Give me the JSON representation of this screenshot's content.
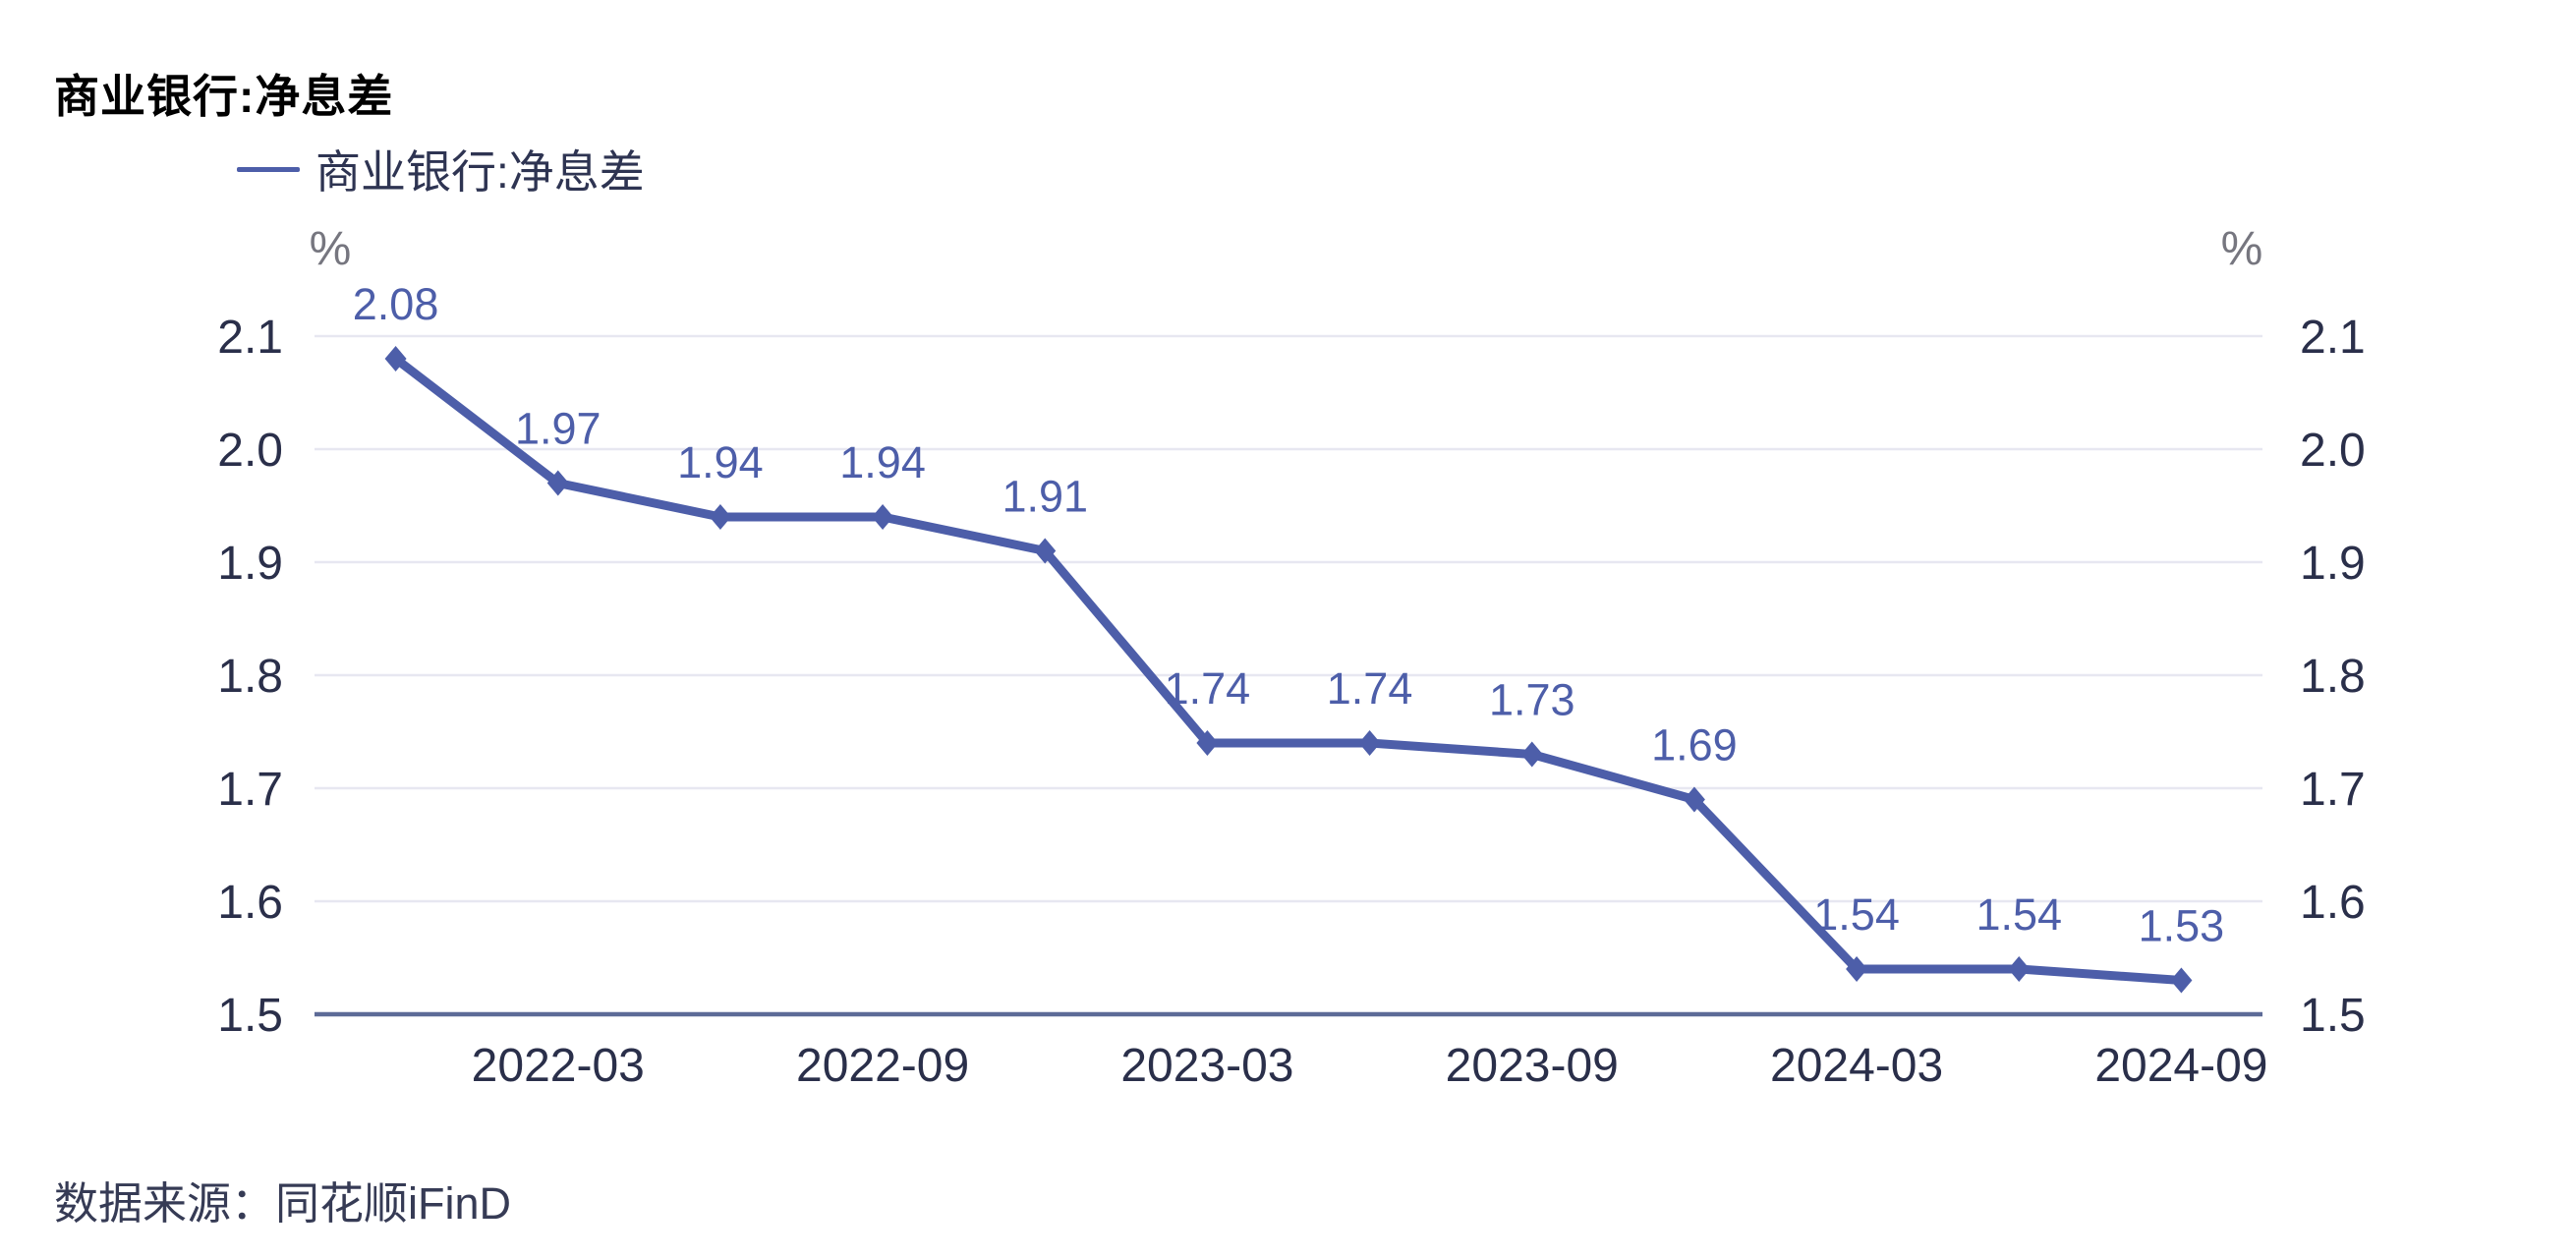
{
  "title": "商业银行:净息差",
  "legend": {
    "label": "商业银行:净息差"
  },
  "source": {
    "label": "数据来源：同花顺iFinD"
  },
  "chart_data": {
    "type": "line",
    "title": "商业银行:净息差",
    "unit": "%",
    "x": [
      "2021-12",
      "2022-03",
      "2022-06",
      "2022-09",
      "2022-12",
      "2023-03",
      "2023-06",
      "2023-09",
      "2023-12",
      "2024-03",
      "2024-06",
      "2024-09"
    ],
    "series": [
      {
        "name": "商业银行:净息差",
        "values": [
          2.08,
          1.97,
          1.94,
          1.94,
          1.91,
          1.74,
          1.74,
          1.73,
          1.69,
          1.54,
          1.54,
          1.53
        ]
      }
    ],
    "data_labels": [
      "2.08",
      "1.97",
      "1.94",
      "1.94",
      "1.91",
      "1.74",
      "1.74",
      "1.73",
      "1.69",
      "1.54",
      "1.54",
      "1.53"
    ],
    "x_tick_labels": [
      "2022-03",
      "2022-09",
      "2023-03",
      "2023-09",
      "2024-03",
      "2024-09"
    ],
    "y_tick_labels": [
      "2.1",
      "2.0",
      "1.9",
      "1.8",
      "1.7",
      "1.6",
      "1.5"
    ],
    "ylim": [
      1.5,
      2.1
    ],
    "grid": true,
    "legend_position": "top-left",
    "colors": {
      "line": "#4d5ea9",
      "data_label": "#4d5ea9",
      "tick_label": "#2a2f4a",
      "gridline": "#e7e7f1",
      "axis_line": "#5d6b97"
    }
  }
}
